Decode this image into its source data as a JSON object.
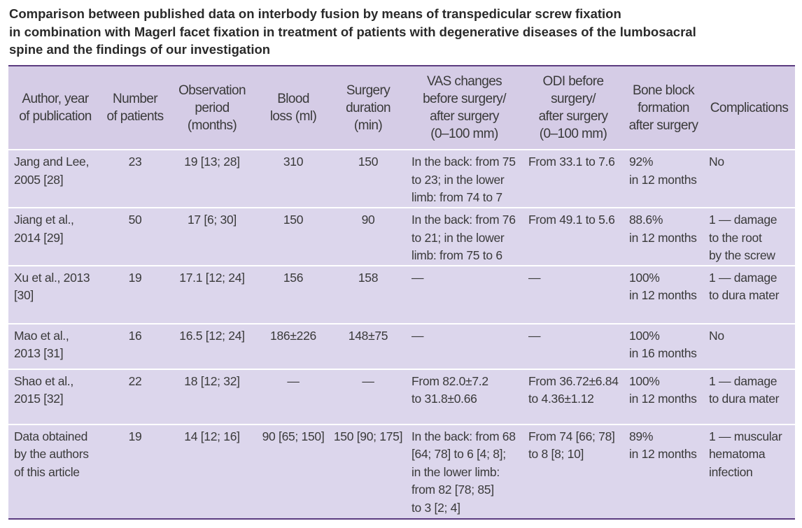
{
  "title": {
    "line1": "Comparison between published data on interbody fusion by means of transpedicular screw fixation",
    "line2": "in combination with Magerl facet fixation in treatment of patients with degenerative diseases of the lumbosacral",
    "line3": "spine and the findings of our investigation"
  },
  "table": {
    "headers": [
      [
        "Author, year",
        "of publication"
      ],
      [
        "Number",
        "of patients"
      ],
      [
        "Observation",
        "period",
        "(months)"
      ],
      [
        "Blood",
        "loss (ml)"
      ],
      [
        "Surgery",
        "duration",
        "(min)"
      ],
      [
        "VAS changes",
        "before surgery/",
        "after surgery",
        "(0–100 mm)"
      ],
      [
        "ODI before",
        "surgery/",
        "after surgery",
        "(0–100 mm)"
      ],
      [
        "Bone block",
        "formation",
        "after surgery"
      ],
      [
        "Complications"
      ]
    ],
    "rows": [
      {
        "author": [
          "Jang and Lee,",
          "2005 [28]"
        ],
        "patients": "23",
        "period": "19 [13; 28]",
        "blood": "310",
        "duration": "150",
        "vas": [
          "In the back: from 75",
          "to 23; in the lower",
          "limb: from 74 to 7"
        ],
        "odi": [
          "From 33.1 to 7.6"
        ],
        "bone": [
          "92%",
          "in 12 months"
        ],
        "complications": [
          "No"
        ]
      },
      {
        "author": [
          "Jiang et al.,",
          "2014 [29]"
        ],
        "patients": "50",
        "period": "17 [6; 30]",
        "blood": "150",
        "duration": "90",
        "vas": [
          "In the back: from 76",
          "to 21; in the lower",
          "limb: from 75 to 6"
        ],
        "odi": [
          "From 49.1 to 5.6"
        ],
        "bone": [
          "88.6%",
          "in 12 months"
        ],
        "complications": [
          "1 — damage",
          "to the root",
          "by the screw"
        ]
      },
      {
        "author": [
          "Xu et al., 2013",
          "[30]"
        ],
        "patients": "19",
        "period": "17.1 [12; 24]",
        "blood": "156",
        "duration": "158",
        "vas": [
          "—"
        ],
        "odi": [
          "—"
        ],
        "bone": [
          "100%",
          "in 12 months"
        ],
        "complications": [
          "1 — damage",
          "to dura mater"
        ]
      },
      {
        "author": [
          "Mao et al.,",
          "2013 [31]"
        ],
        "patients": "16",
        "period": "16.5 [12; 24]",
        "blood": "186±226",
        "duration": "148±75",
        "vas": [
          "—"
        ],
        "odi": [
          "—"
        ],
        "bone": [
          "100%",
          "in 16 months"
        ],
        "complications": [
          "No"
        ]
      },
      {
        "author": [
          "Shao et al.,",
          "2015 [32]"
        ],
        "patients": "22",
        "period": "18 [12; 32]",
        "blood": "—",
        "duration": "—",
        "vas": [
          "From 82.0±7.2",
          "to 31.8±0.66"
        ],
        "odi": [
          "From 36.72±6.84",
          "to 4.36±1.12"
        ],
        "bone": [
          "100%",
          "in 12 months"
        ],
        "complications": [
          "1 — damage",
          "to dura mater"
        ]
      },
      {
        "author": [
          "Data obtained",
          "by the authors",
          "of this article"
        ],
        "patients": "19",
        "period": "14 [12; 16]",
        "blood": "90 [65; 150]",
        "duration": "150 [90; 175]",
        "vas": [
          "In the back: from 68",
          "[64; 78] to 6 [4; 8];",
          "in the lower limb:",
          "from 82 [78; 85]",
          "to 3 [2; 4]"
        ],
        "odi": [
          "From 74 [66; 78]",
          "to 8 [8; 10]"
        ],
        "bone": [
          "89%",
          "in 12 months"
        ],
        "complications": [
          "1 — muscular",
          "hematoma",
          "infection"
        ]
      }
    ]
  }
}
